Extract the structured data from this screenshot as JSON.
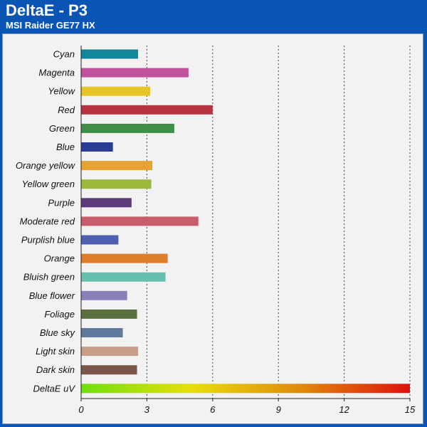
{
  "header": {
    "title": "DeltaE - P3",
    "subtitle": "MSI Raider GE77 HX"
  },
  "chart_data": {
    "type": "bar",
    "orientation": "horizontal",
    "title": "DeltaE - P3",
    "subtitle": "MSI Raider GE77 HX",
    "xlim": [
      0,
      15
    ],
    "xticks": [
      0,
      3,
      6,
      9,
      12,
      15
    ],
    "grid": "vertical dotted",
    "categories": [
      "Cyan",
      "Magenta",
      "Yellow",
      "Red",
      "Green",
      "Blue",
      "Orange yellow",
      "Yellow green",
      "Purple",
      "Moderate red",
      "Purplish blue",
      "Orange",
      "Bluish green",
      "Blue flower",
      "Foliage",
      "Blue sky",
      "Light skin",
      "Dark skin",
      "DeltaE uV"
    ],
    "values": [
      2.6,
      4.9,
      3.15,
      6.0,
      4.25,
      1.45,
      3.25,
      3.2,
      2.3,
      5.35,
      1.7,
      3.95,
      3.85,
      2.1,
      2.55,
      1.9,
      2.6,
      2.55,
      15
    ],
    "colors": [
      "#12869a",
      "#c0519a",
      "#e6c626",
      "#b83341",
      "#3f8e45",
      "#2a3c95",
      "#e5a332",
      "#9bba3b",
      "#5d3a78",
      "#c95c6b",
      "#4d5fae",
      "#dd7d2a",
      "#67bfad",
      "#8a80b9",
      "#5a6e3e",
      "#60799f",
      "#c89e88",
      "#7a574a",
      "gradient"
    ],
    "gradient_colors": [
      "#6fe00a",
      "#e7df0a",
      "#e08a0a",
      "#e01010"
    ]
  }
}
